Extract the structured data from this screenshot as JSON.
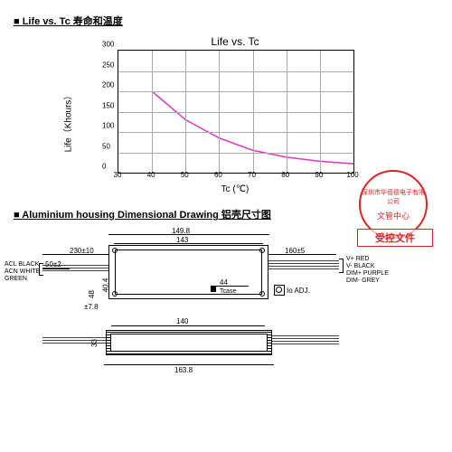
{
  "section1": {
    "title": "Life vs. Tc  寿命和温度",
    "chart": {
      "title": "Life vs. Tc",
      "ylabel": "Life（Khours）",
      "xlabel": "Tc (℃)",
      "ylim": [
        0,
        300
      ],
      "ytick_step": 50,
      "xlim": [
        30,
        100
      ],
      "xtick_step": 10,
      "curve_color": "#d838c8",
      "points": [
        {
          "x": 40,
          "y": 200
        },
        {
          "x": 50,
          "y": 130
        },
        {
          "x": 60,
          "y": 85
        },
        {
          "x": 70,
          "y": 55
        },
        {
          "x": 80,
          "y": 38
        },
        {
          "x": 90,
          "y": 28
        },
        {
          "x": 100,
          "y": 22
        }
      ]
    }
  },
  "section2": {
    "title": "Aluminium housing Dimensional Drawing 铝壳尺寸图",
    "dims": {
      "top_outer": "149.8",
      "top_inner": "143",
      "left_lead": "230±10",
      "left_tol": "50±2",
      "right_lead": "160±5",
      "height": "48",
      "height2": "40.4",
      "flange": "±7.8",
      "tcase_offset": "44",
      "tcase_label": "Tcase",
      "io_adj": "Io ADJ.",
      "bot_inner": "140",
      "bot_outer": "163.8",
      "bot_h": "33"
    },
    "left_wires": [
      "ACL   BLACK",
      "ACN   WHITE",
      "GREEN"
    ],
    "right_wires": [
      "V+ RED",
      "V- BLACK",
      "DIM+ PURPLE",
      "DIM- GREY"
    ]
  },
  "stamp": {
    "line1": "深圳市华佰德电子有限公司",
    "line2": "文管中心",
    "box": "受控文件"
  }
}
